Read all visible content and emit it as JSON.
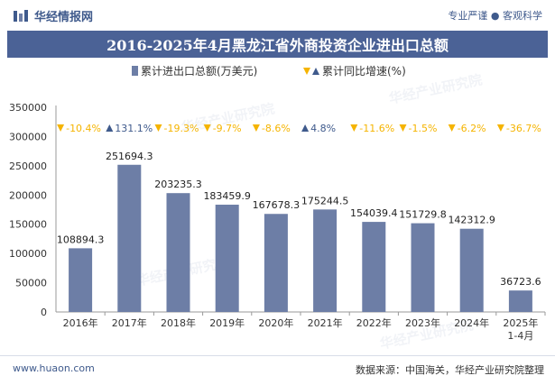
{
  "header": {
    "brand": "华经情报网",
    "tagline": "专业严谨 ● 客观科学"
  },
  "title": "2016-2025年4月黑龙江省外商投资企业进出口总额",
  "footer": {
    "url": "www.huaon.com",
    "source": "数据来源：中国海关，华经产业研究院整理"
  },
  "watermark_text": "华经产业研究院",
  "chart_data": {
    "type": "bar",
    "categories": [
      "2016年",
      "2017年",
      "2018年",
      "2019年",
      "2020年",
      "2021年",
      "2022年",
      "2023年",
      "2024年",
      "2025年\n1-4月"
    ],
    "series": [
      {
        "name": "累计进出口总额(万美元)",
        "values": [
          108894.3,
          251694.3,
          203235.3,
          183459.9,
          167678.3,
          175244.5,
          154039.4,
          151729.8,
          142312.9,
          36723.6
        ],
        "labels": [
          "108894.3",
          "251694.3",
          "203235.3",
          "183459.9",
          "167678.3",
          "175244.5",
          "154039.4",
          "151729.8",
          "142312.9",
          "36723.6"
        ],
        "color": "#6d7ea6"
      },
      {
        "name": "累计同比增速(%)",
        "values": [
          -10.4,
          131.1,
          -19.3,
          -9.7,
          -8.6,
          4.8,
          -11.6,
          -1.5,
          -6.2,
          -36.7
        ],
        "labels": [
          "-10.4%",
          "131.1%",
          "-19.3%",
          "-9.7%",
          "-8.6%",
          "4.8%",
          "-11.6%",
          "-1.5%",
          "-6.2%",
          "-36.7%"
        ],
        "down_color": "#f5b400",
        "up_color": "#3f5a8c"
      }
    ],
    "yticks": [
      0,
      50000,
      100000,
      150000,
      200000,
      250000,
      300000,
      350000
    ],
    "ylim": [
      0,
      350000
    ],
    "legend_position": "top-center",
    "grid": false
  }
}
